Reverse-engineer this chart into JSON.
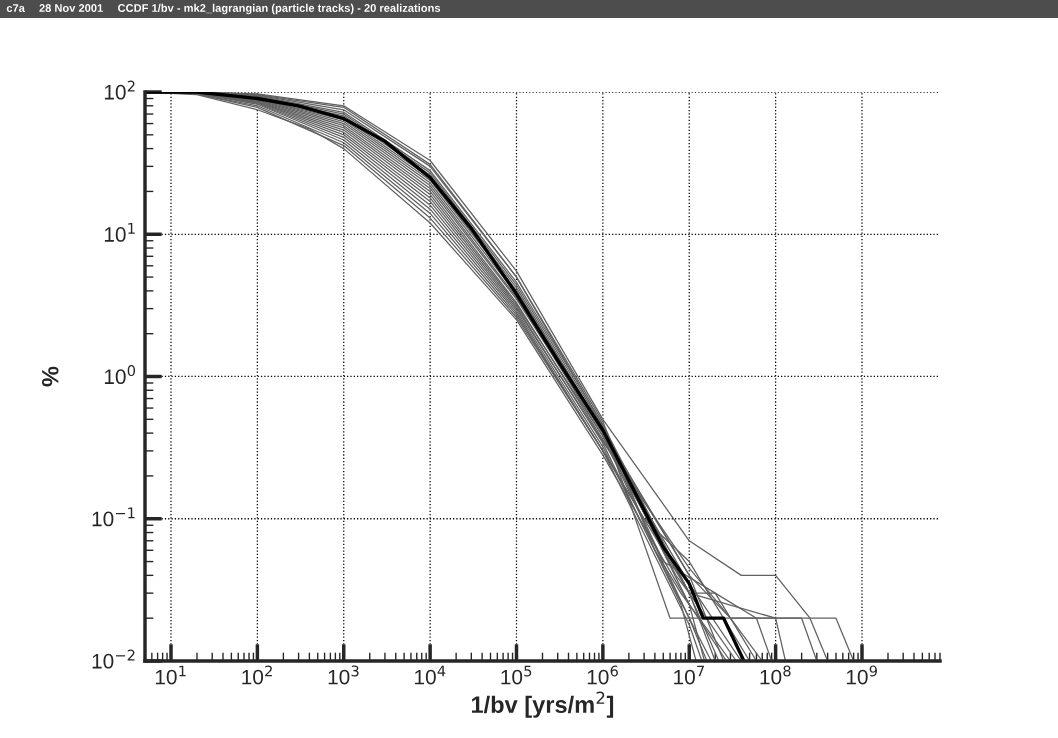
{
  "chart_data": {
    "type": "line",
    "title": "CCDF 1/bv - mk2_lagrangian (particle tracks) - 20 realizations",
    "annotations": [
      "c7a",
      "28 Nov 2001"
    ],
    "xlabel": "1/bv [yrs/m$^{2}$]",
    "ylabel": "%",
    "log": "xy",
    "grid": true,
    "legend": false,
    "xlim": [
      5,
      8000000000
    ],
    "ylim": [
      0.01,
      100
    ],
    "xticks": [
      {
        "value": 10,
        "label": "10$^{1}$"
      },
      {
        "value": 100,
        "label": "10$^{2}$"
      },
      {
        "value": 1000,
        "label": "10$^{3}$"
      },
      {
        "value": 10000,
        "label": "10$^{4}$"
      },
      {
        "value": 100000,
        "label": "10$^{5}$"
      },
      {
        "value": 1000000,
        "label": "10$^{6}$"
      },
      {
        "value": 10000000,
        "label": "10$^{7}$"
      },
      {
        "value": 100000000,
        "label": "10$^{8}$"
      },
      {
        "value": 1000000000,
        "label": "10$^{9}$"
      }
    ],
    "yticks": [
      {
        "value": 0.01,
        "label": "10$^{−2}$"
      },
      {
        "value": 0.1,
        "label": "10$^{−1}$"
      },
      {
        "value": 1,
        "label": "10$^{0}$"
      },
      {
        "value": 10,
        "label": "10$^{1}$"
      },
      {
        "value": 100,
        "label": "10$^{2}$"
      }
    ],
    "series": [
      {
        "color": "#606060",
        "x": [
          5,
          20,
          100,
          1000,
          10000,
          100000,
          1000000,
          10000000,
          40000000,
          100000000,
          250000000,
          400000000
        ],
        "values": [
          100,
          100,
          97,
          80,
          33,
          5.5,
          0.5,
          0.07,
          0.04,
          0.04,
          0.02,
          0.01
        ]
      },
      {
        "color": "#606060",
        "x": [
          5,
          20,
          100,
          1000,
          10000,
          100000,
          1000000,
          6000000,
          500000000,
          800000000
        ],
        "values": [
          100,
          100,
          96,
          78,
          31,
          5,
          0.45,
          0.02,
          0.02,
          0.01
        ]
      },
      {
        "color": "#606060",
        "x": [
          5,
          20,
          100,
          1000,
          10000,
          100000,
          1000000,
          4000000,
          8000000,
          30000000
        ],
        "values": [
          100,
          100,
          95,
          75,
          30,
          5,
          0.48,
          0.06,
          0.03,
          0.01
        ]
      },
      {
        "color": "#606060",
        "x": [
          5,
          20,
          100,
          1000,
          10000,
          100000,
          1000000,
          10000000,
          20000000,
          30000000,
          60000000
        ],
        "values": [
          100,
          99,
          94,
          72,
          28,
          4.6,
          0.46,
          0.03,
          0.03,
          0.02,
          0.01
        ]
      },
      {
        "color": "#606060",
        "x": [
          5,
          20,
          100,
          1000,
          10000,
          100000,
          1000000,
          10000000,
          20000000
        ],
        "values": [
          100,
          99,
          93,
          70,
          27,
          4.4,
          0.44,
          0.03,
          0.01
        ]
      },
      {
        "color": "#606060",
        "x": [
          5,
          20,
          100,
          1000,
          10000,
          100000,
          1000000,
          10000000,
          15000000
        ],
        "values": [
          100,
          99,
          92,
          68,
          26,
          4.2,
          0.42,
          0.025,
          0.01
        ]
      },
      {
        "color": "#606060",
        "x": [
          5,
          20,
          100,
          1000,
          10000,
          100000,
          1000000,
          7000000,
          10000000,
          100000000,
          130000000
        ],
        "values": [
          100,
          99,
          91,
          66,
          25,
          4,
          0.4,
          0.04,
          0.03,
          0.02,
          0.01
        ]
      },
      {
        "color": "#606060",
        "x": [
          5,
          20,
          100,
          1000,
          10000,
          100000,
          1000000,
          10000000,
          25000000
        ],
        "values": [
          100,
          99,
          90,
          64,
          24,
          4,
          0.42,
          0.04,
          0.01
        ]
      },
      {
        "color": "#606060",
        "x": [
          5,
          20,
          100,
          1000,
          10000,
          100000,
          1000000,
          5000000,
          20000000,
          60000000,
          90000000
        ],
        "values": [
          100,
          99,
          90,
          62,
          23,
          3.8,
          0.4,
          0.05,
          0.03,
          0.02,
          0.01
        ]
      },
      {
        "color": "#606060",
        "x": [
          5,
          20,
          100,
          1000,
          10000,
          100000,
          1000000,
          10000000,
          18000000
        ],
        "values": [
          100,
          99,
          89,
          60,
          22,
          3.6,
          0.38,
          0.02,
          0.01
        ]
      },
      {
        "color": "#606060",
        "x": [
          5,
          20,
          100,
          1000,
          10000,
          100000,
          1000000,
          10000000,
          30000000,
          50000000,
          200000000,
          300000000
        ],
        "values": [
          100,
          99,
          88,
          58,
          21,
          3.5,
          0.4,
          0.04,
          0.02,
          0.02,
          0.02,
          0.01
        ]
      },
      {
        "color": "#606060",
        "x": [
          5,
          20,
          100,
          1000,
          10000,
          100000,
          1000000,
          10000000,
          22000000
        ],
        "values": [
          100,
          98,
          87,
          56,
          20,
          3.3,
          0.36,
          0.03,
          0.01
        ]
      },
      {
        "color": "#606060",
        "x": [
          5,
          20,
          100,
          1000,
          10000,
          100000,
          1000000,
          10000000,
          40000000
        ],
        "values": [
          100,
          98,
          86,
          54,
          19,
          3.2,
          0.38,
          0.035,
          0.01
        ]
      },
      {
        "color": "#606060",
        "x": [
          5,
          20,
          100,
          1000,
          10000,
          100000,
          1000000,
          8000000,
          12000000
        ],
        "values": [
          100,
          98,
          85,
          52,
          18,
          3.1,
          0.34,
          0.025,
          0.01
        ]
      },
      {
        "color": "#606060",
        "x": [
          5,
          20,
          100,
          1000,
          10000,
          100000,
          1000000,
          10000000,
          30000000,
          70000000
        ],
        "values": [
          100,
          98,
          84,
          50,
          17,
          3,
          0.35,
          0.045,
          0.02,
          0.01
        ]
      },
      {
        "color": "#606060",
        "x": [
          5,
          20,
          100,
          1000,
          10000,
          100000,
          1000000,
          10000000,
          16000000
        ],
        "values": [
          100,
          98,
          83,
          48,
          16,
          2.9,
          0.32,
          0.02,
          0.01
        ]
      },
      {
        "color": "#606060",
        "x": [
          5,
          20,
          100,
          1000,
          10000,
          100000,
          1000000,
          10000000,
          35000000
        ],
        "values": [
          100,
          98,
          82,
          46,
          15,
          2.8,
          0.3,
          0.03,
          0.01
        ]
      },
      {
        "color": "#606060",
        "x": [
          5,
          20,
          100,
          1000,
          10000,
          100000,
          1000000,
          10000000,
          14000000
        ],
        "values": [
          100,
          97,
          80,
          44,
          14,
          2.7,
          0.3,
          0.018,
          0.01
        ]
      },
      {
        "color": "#606060",
        "x": [
          5,
          20,
          100,
          1000,
          10000,
          100000,
          1000000,
          3000000,
          10000000,
          50000000
        ],
        "values": [
          100,
          97,
          78,
          42,
          13,
          2.6,
          0.3,
          0.1,
          0.05,
          0.01
        ]
      },
      {
        "color": "#606060",
        "x": [
          5,
          20,
          100,
          400,
          1000,
          10000,
          100000,
          1000000,
          10000000,
          27000000
        ],
        "values": [
          100,
          96,
          75,
          55,
          40,
          12,
          2.5,
          0.28,
          0.025,
          0.01
        ]
      },
      {
        "color": "#000000",
        "x": [
          5,
          20,
          100,
          300,
          1000,
          3000,
          10000,
          30000,
          100000,
          300000,
          1000000,
          5000000,
          10000000,
          14500000,
          25000000,
          43000000
        ],
        "values": [
          100,
          100,
          90,
          80,
          65,
          45,
          25,
          11,
          3.8,
          1.3,
          0.42,
          0.063,
          0.035,
          0.02,
          0.02,
          0.01
        ]
      }
    ]
  }
}
